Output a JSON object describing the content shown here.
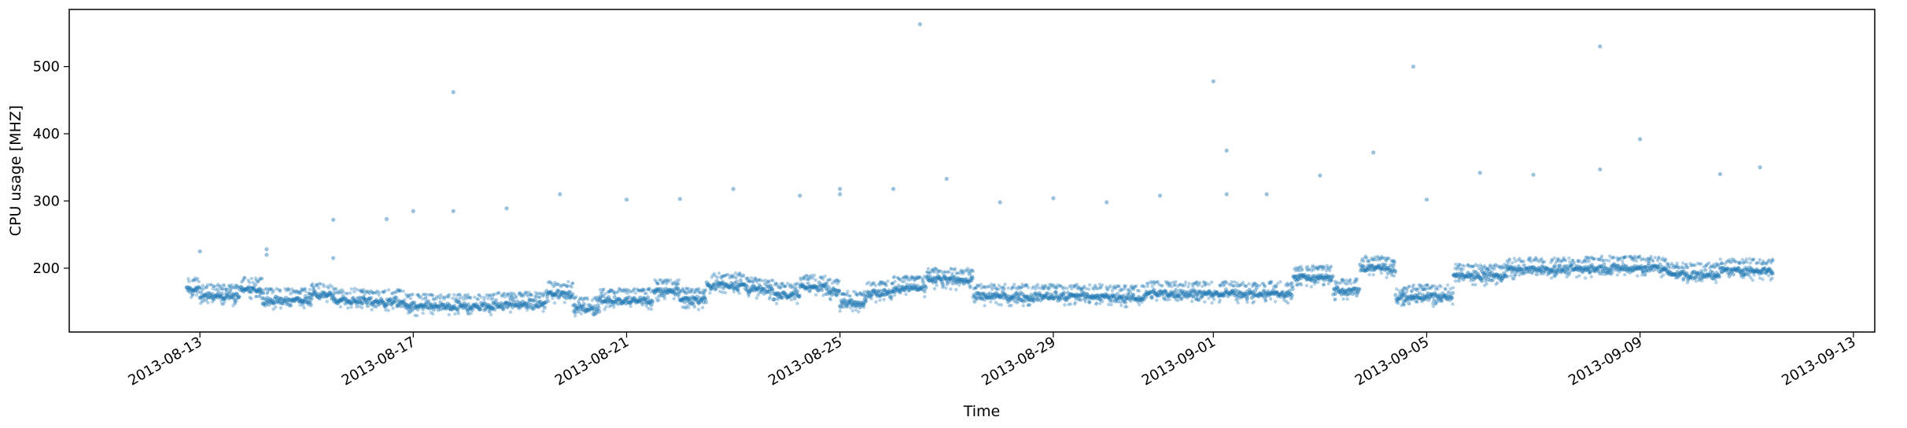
{
  "chart_data": {
    "type": "scatter",
    "title": "",
    "xlabel": "Time",
    "ylabel": "CPU usage [MHZ]",
    "x_range": [
      "2013-08-11",
      "2013-09-13"
    ],
    "ylim": [
      105,
      585
    ],
    "grid": false,
    "legend": "none",
    "marker_color": "#1f77b4",
    "marker_alpha": 0.45,
    "xticks": [
      "2013-08-13",
      "2013-08-17",
      "2013-08-21",
      "2013-08-25",
      "2013-08-29",
      "2013-09-01",
      "2013-09-05",
      "2013-09-09",
      "2013-09-13"
    ],
    "yticks": [
      200,
      300,
      400,
      500
    ],
    "baseline_segments": [
      {
        "start": "2013-08-12T18:00",
        "end": "2013-08-13T00:00",
        "level": 168
      },
      {
        "start": "2013-08-13T00:00",
        "end": "2013-08-13T18:00",
        "level": 158
      },
      {
        "start": "2013-08-13T18:00",
        "end": "2013-08-14T04:00",
        "level": 168
      },
      {
        "start": "2013-08-14T04:00",
        "end": "2013-08-15T02:00",
        "level": 152
      },
      {
        "start": "2013-08-15T02:00",
        "end": "2013-08-15T12:00",
        "level": 160
      },
      {
        "start": "2013-08-15T12:00",
        "end": "2013-08-16T02:00",
        "level": 152
      },
      {
        "start": "2013-08-16T02:00",
        "end": "2013-08-16T20:00",
        "level": 150
      },
      {
        "start": "2013-08-16T20:00",
        "end": "2013-08-18T12:00",
        "level": 143
      },
      {
        "start": "2013-08-18T12:00",
        "end": "2013-08-19T12:00",
        "level": 146
      },
      {
        "start": "2013-08-19T12:00",
        "end": "2013-08-20T00:00",
        "level": 162
      },
      {
        "start": "2013-08-20T00:00",
        "end": "2013-08-20T12:00",
        "level": 140
      },
      {
        "start": "2013-08-20T12:00",
        "end": "2013-08-21T12:00",
        "level": 152
      },
      {
        "start": "2013-08-21T12:00",
        "end": "2013-08-22T00:00",
        "level": 165
      },
      {
        "start": "2013-08-22T00:00",
        "end": "2013-08-22T12:00",
        "level": 152
      },
      {
        "start": "2013-08-22T12:00",
        "end": "2013-08-23T06:00",
        "level": 175
      },
      {
        "start": "2013-08-23T06:00",
        "end": "2013-08-23T18:00",
        "level": 168
      },
      {
        "start": "2013-08-23T18:00",
        "end": "2013-08-24T06:00",
        "level": 160
      },
      {
        "start": "2013-08-24T06:00",
        "end": "2013-08-24T18:00",
        "level": 172
      },
      {
        "start": "2013-08-24T18:00",
        "end": "2013-08-25T00:00",
        "level": 167
      },
      {
        "start": "2013-08-25T00:00",
        "end": "2013-08-25T12:00",
        "level": 148
      },
      {
        "start": "2013-08-25T12:00",
        "end": "2013-08-26T00:00",
        "level": 163
      },
      {
        "start": "2013-08-26T00:00",
        "end": "2013-08-26T15:00",
        "level": 170
      },
      {
        "start": "2013-08-26T15:00",
        "end": "2013-08-27T12:00",
        "level": 182
      },
      {
        "start": "2013-08-27T12:00",
        "end": "2013-08-30T00:00",
        "level": 158
      },
      {
        "start": "2013-08-30T00:00",
        "end": "2013-08-30T18:00",
        "level": 156
      },
      {
        "start": "2013-08-30T18:00",
        "end": "2013-09-02T12:00",
        "level": 162
      },
      {
        "start": "2013-09-02T12:00",
        "end": "2013-09-03T06:00",
        "level": 186
      },
      {
        "start": "2013-09-03T06:00",
        "end": "2013-09-03T18:00",
        "level": 166
      },
      {
        "start": "2013-09-03T18:00",
        "end": "2013-09-04T10:00",
        "level": 200
      },
      {
        "start": "2013-09-04T10:00",
        "end": "2013-09-04T18:00",
        "level": 155
      },
      {
        "start": "2013-09-04T18:00",
        "end": "2013-09-05T12:00",
        "level": 157
      },
      {
        "start": "2013-09-05T12:00",
        "end": "2013-09-06T12:00",
        "level": 188
      },
      {
        "start": "2013-09-06T12:00",
        "end": "2013-09-08T00:00",
        "level": 198
      },
      {
        "start": "2013-09-08T00:00",
        "end": "2013-09-09T12:00",
        "level": 200
      },
      {
        "start": "2013-09-09T12:00",
        "end": "2013-09-10T12:00",
        "level": 190
      },
      {
        "start": "2013-09-10T12:00",
        "end": "2013-09-11T12:00",
        "level": 196
      }
    ],
    "outliers": [
      {
        "x": "2013-08-13T00:00",
        "y": 225
      },
      {
        "x": "2013-08-14T06:00",
        "y": 228
      },
      {
        "x": "2013-08-14T06:00",
        "y": 220
      },
      {
        "x": "2013-08-15T12:00",
        "y": 272
      },
      {
        "x": "2013-08-15T12:00",
        "y": 215
      },
      {
        "x": "2013-08-16T12:00",
        "y": 273
      },
      {
        "x": "2013-08-17T00:00",
        "y": 285
      },
      {
        "x": "2013-08-17T18:00",
        "y": 462
      },
      {
        "x": "2013-08-17T18:00",
        "y": 285
      },
      {
        "x": "2013-08-18T18:00",
        "y": 289
      },
      {
        "x": "2013-08-19T18:00",
        "y": 310
      },
      {
        "x": "2013-08-21T00:00",
        "y": 302
      },
      {
        "x": "2013-08-22T00:00",
        "y": 303
      },
      {
        "x": "2013-08-23T00:00",
        "y": 318
      },
      {
        "x": "2013-08-24T06:00",
        "y": 308
      },
      {
        "x": "2013-08-25T00:00",
        "y": 318
      },
      {
        "x": "2013-08-25T00:00",
        "y": 310
      },
      {
        "x": "2013-08-26T00:00",
        "y": 318
      },
      {
        "x": "2013-08-26T12:00",
        "y": 563
      },
      {
        "x": "2013-08-27T00:00",
        "y": 333
      },
      {
        "x": "2013-08-28T00:00",
        "y": 298
      },
      {
        "x": "2013-08-29T00:00",
        "y": 304
      },
      {
        "x": "2013-08-30T00:00",
        "y": 298
      },
      {
        "x": "2013-08-31T00:00",
        "y": 308
      },
      {
        "x": "2013-09-01T00:00",
        "y": 478
      },
      {
        "x": "2013-09-01T06:00",
        "y": 375
      },
      {
        "x": "2013-09-01T06:00",
        "y": 310
      },
      {
        "x": "2013-09-02T00:00",
        "y": 310
      },
      {
        "x": "2013-09-03T00:00",
        "y": 338
      },
      {
        "x": "2013-09-04T00:00",
        "y": 372
      },
      {
        "x": "2013-09-04T18:00",
        "y": 500
      },
      {
        "x": "2013-09-05T00:00",
        "y": 302
      },
      {
        "x": "2013-09-06T00:00",
        "y": 342
      },
      {
        "x": "2013-09-07T00:00",
        "y": 339
      },
      {
        "x": "2013-09-08T06:00",
        "y": 530
      },
      {
        "x": "2013-09-08T06:00",
        "y": 347
      },
      {
        "x": "2013-09-09T00:00",
        "y": 392
      },
      {
        "x": "2013-09-10T12:00",
        "y": 340
      },
      {
        "x": "2013-09-11T06:00",
        "y": 350
      }
    ]
  }
}
